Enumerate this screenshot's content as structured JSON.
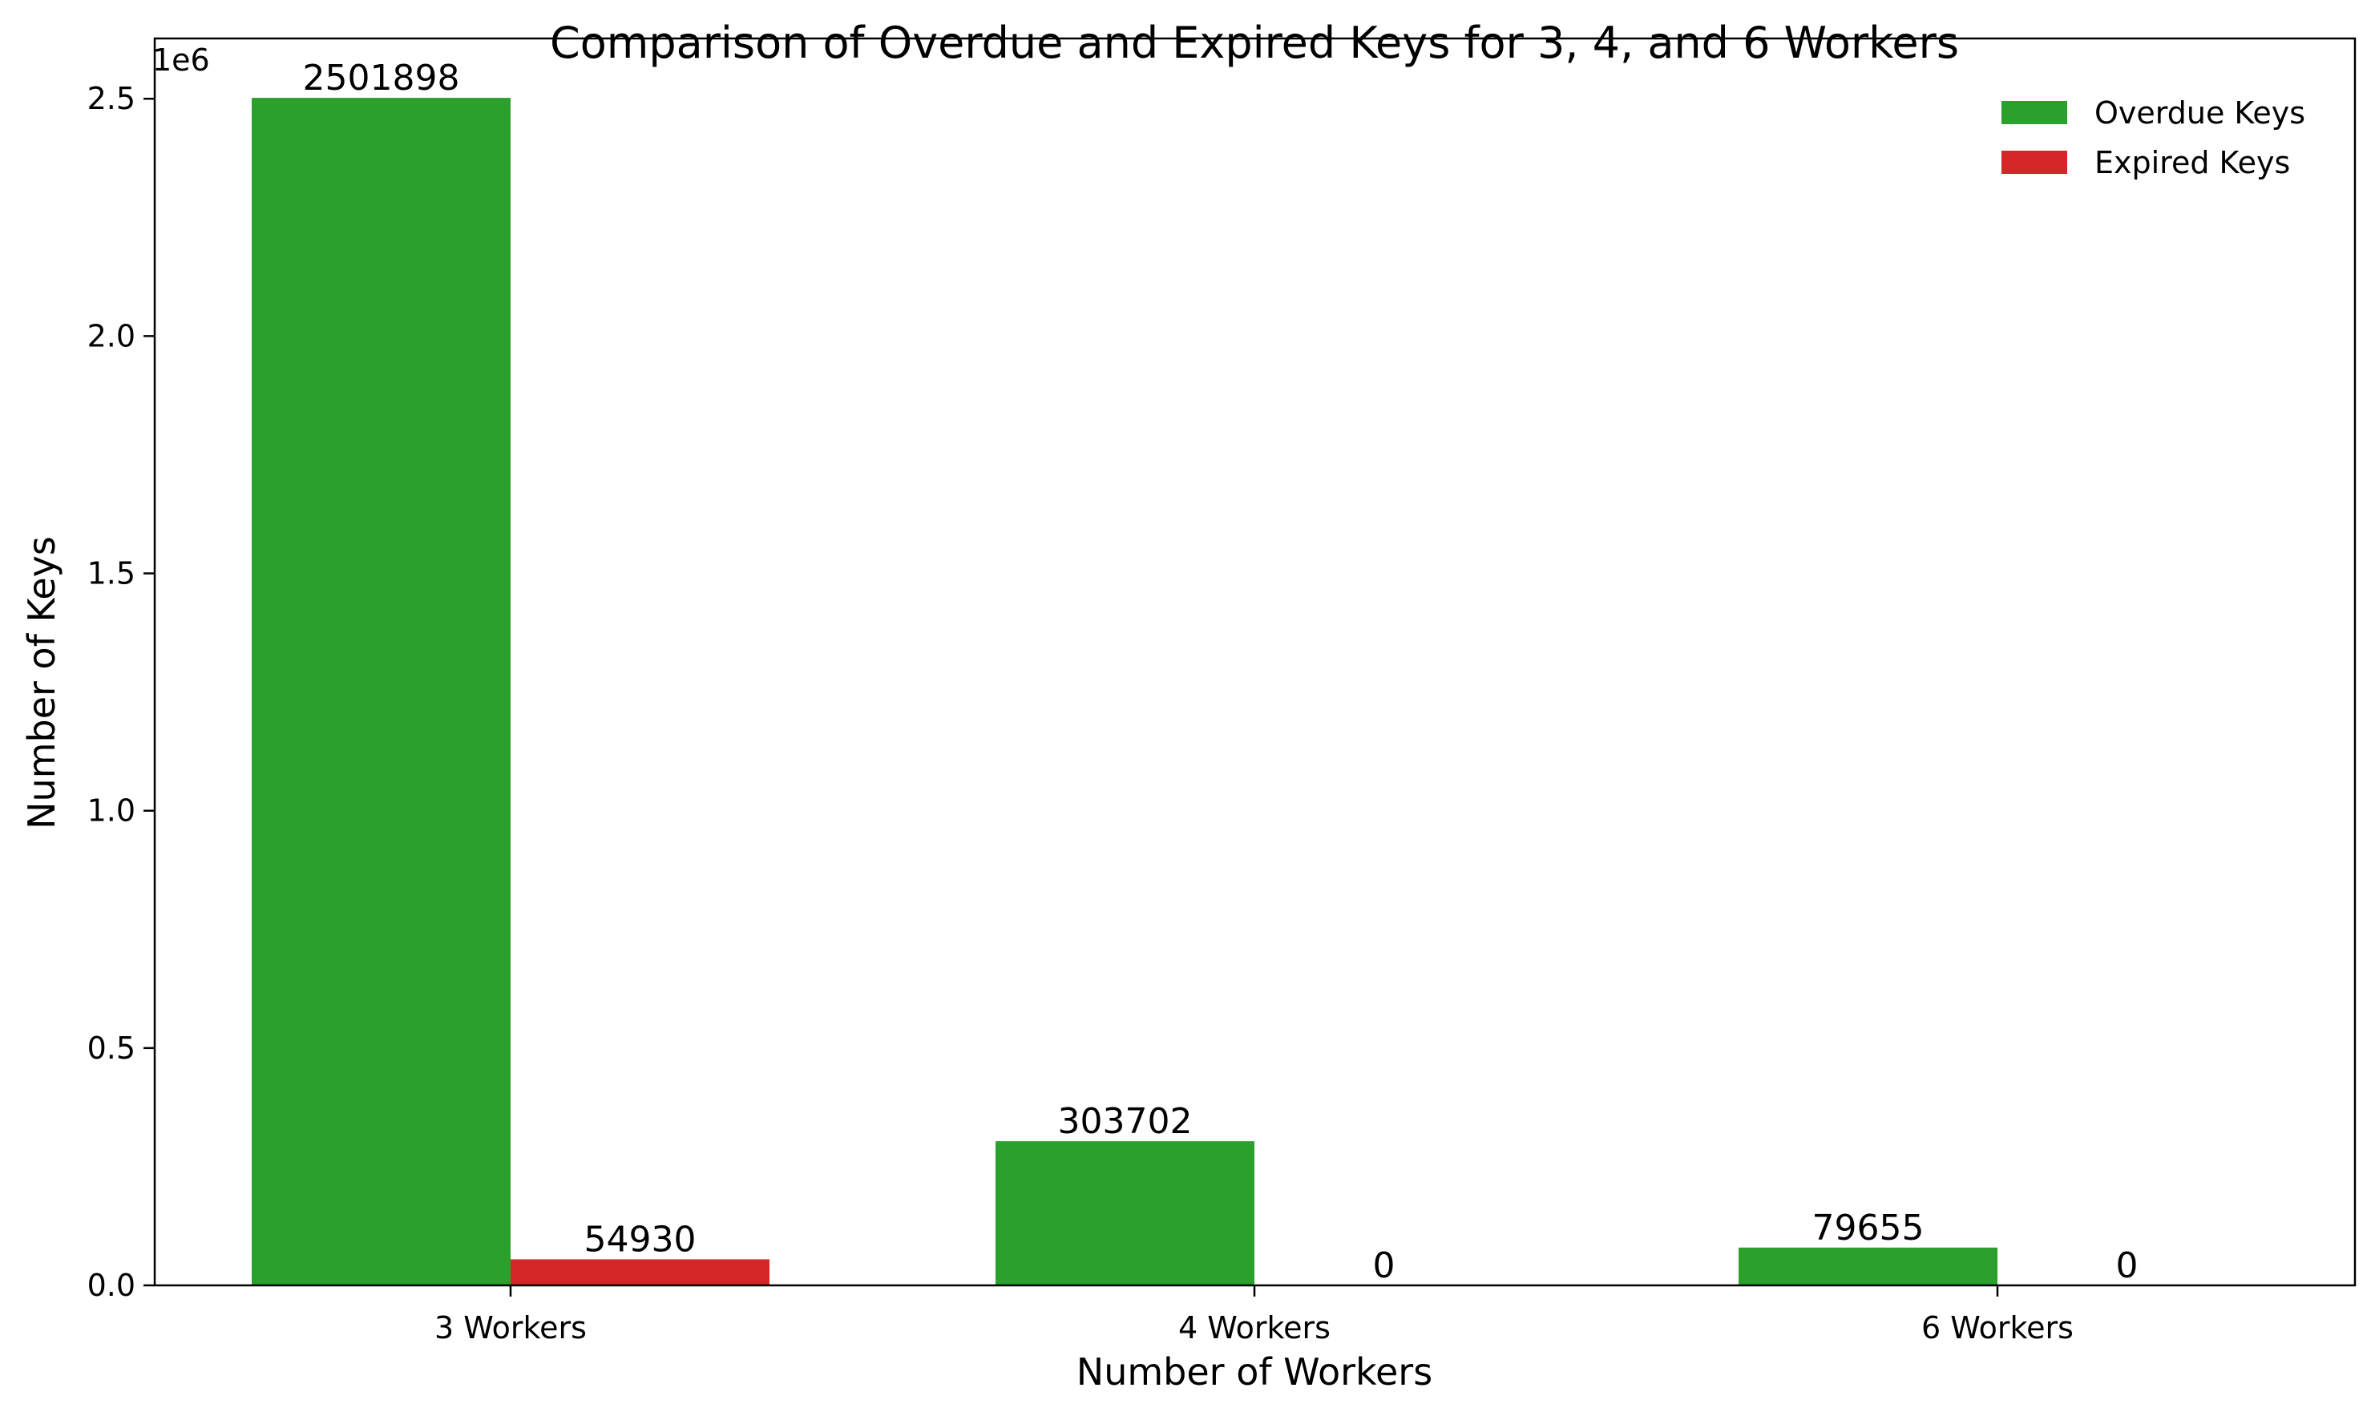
{
  "chart_data": {
    "type": "bar",
    "title": "Comparison of Overdue and Expired Keys for 3, 4, and 6 Workers",
    "xlabel": "Number of Workers",
    "ylabel": "Number of Keys",
    "y_offset_label": "1e6",
    "y_scale_factor": 1000000,
    "categories": [
      "3 Workers",
      "4 Workers",
      "6 Workers"
    ],
    "ylim": [
      0,
      2626993
    ],
    "yticks": [
      0,
      500000,
      1000000,
      1500000,
      2000000,
      2500000
    ],
    "ytick_labels": [
      "0.0",
      "0.5",
      "1.0",
      "1.5",
      "2.0",
      "2.5"
    ],
    "series": [
      {
        "name": "Overdue Keys",
        "color": "#2ca02c",
        "values": [
          2501898,
          303702,
          79655
        ],
        "labels": [
          "2501898",
          "303702",
          "79655"
        ]
      },
      {
        "name": "Expired Keys",
        "color": "#d62728",
        "values": [
          54930,
          0,
          0
        ],
        "labels": [
          "54930",
          "0",
          "0"
        ]
      }
    ],
    "legend_position": "top-right",
    "grid": false
  }
}
